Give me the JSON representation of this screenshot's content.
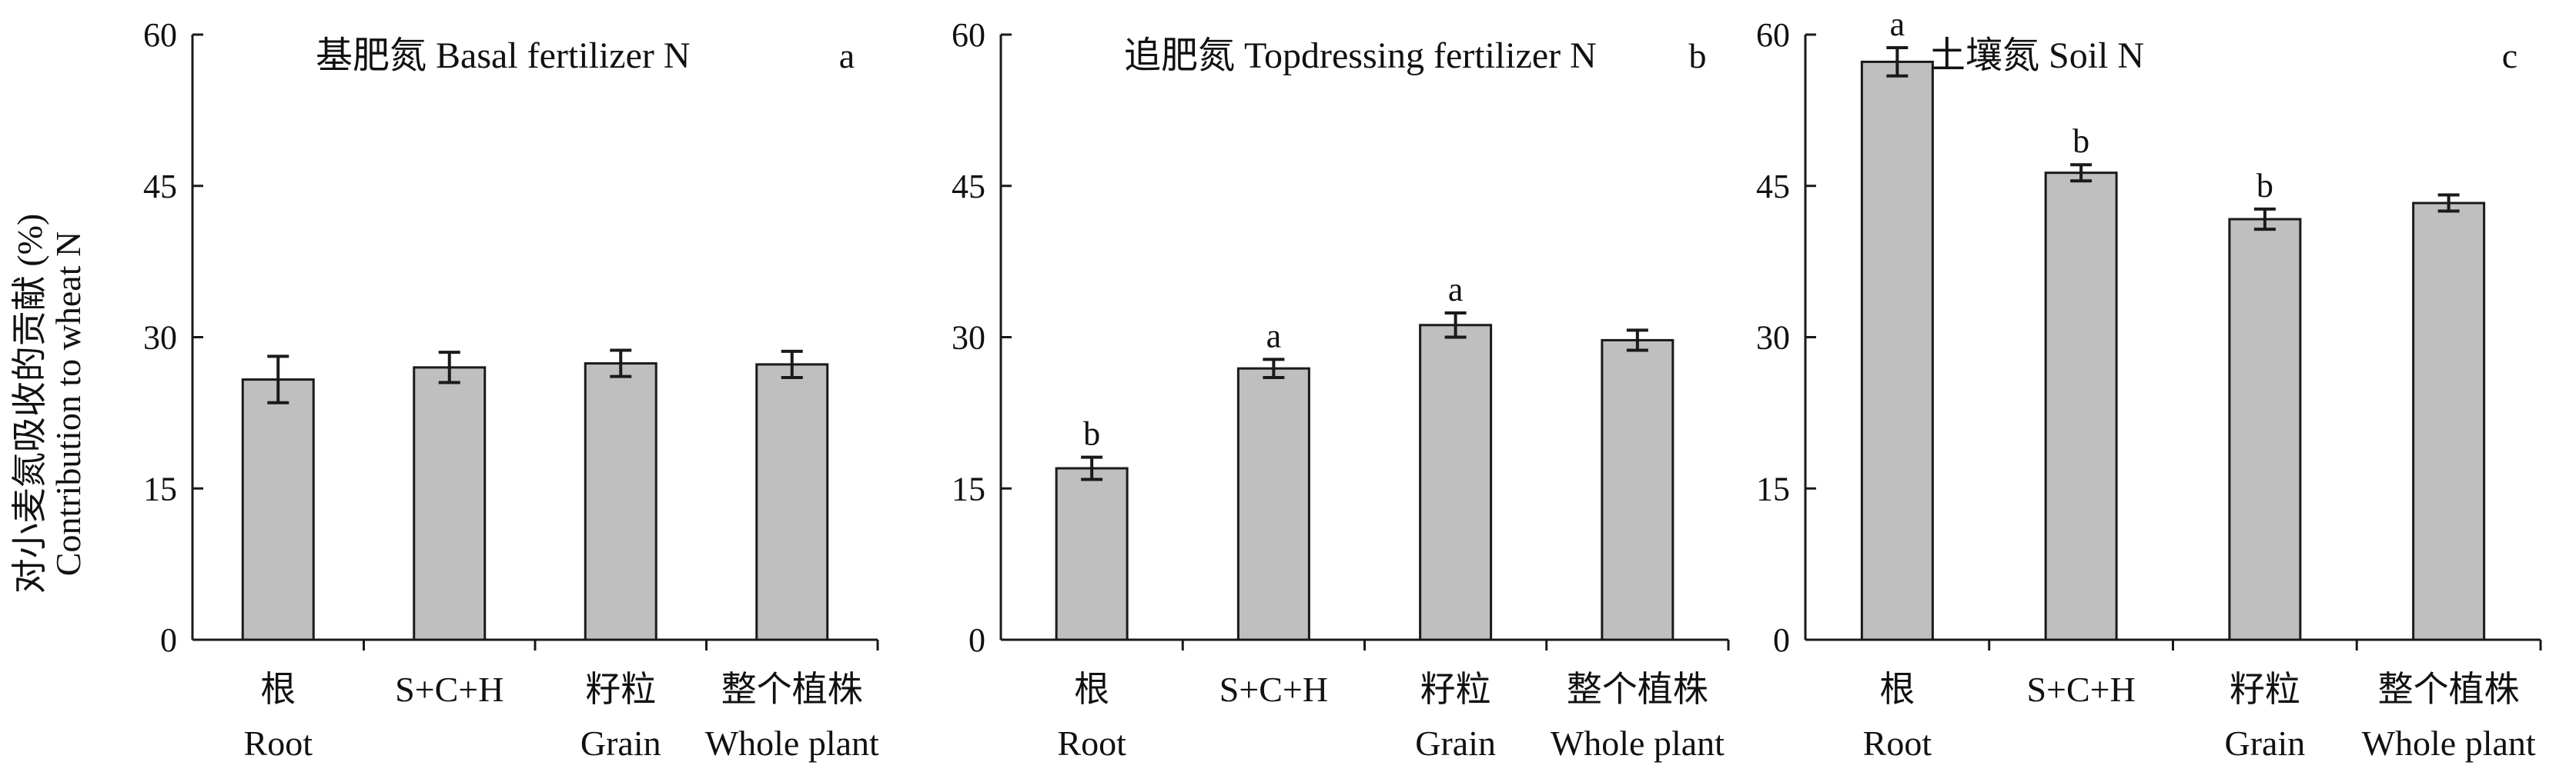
{
  "y_axis_label": {
    "zh": "对小麦氮吸收的贡献 (%)",
    "en": "Contribution to wheat N"
  },
  "chart_data": [
    {
      "type": "bar",
      "panel": "a",
      "title": "基肥氮 Basal fertilizer N",
      "categories": [
        {
          "zh": "根",
          "en": "Root"
        },
        {
          "zh": "S+C+H",
          "en": ""
        },
        {
          "zh": "籽粒",
          "en": "Grain"
        },
        {
          "zh": "整个植株",
          "en": "Whole plant"
        }
      ],
      "values": [
        25.8,
        27.0,
        27.4,
        27.3
      ],
      "errors": [
        2.3,
        1.5,
        1.3,
        1.3
      ],
      "significance": [
        "",
        "",
        "",
        ""
      ],
      "ylim": [
        0,
        60
      ],
      "yticks": [
        0,
        15,
        30,
        45,
        60
      ],
      "bar_color": "#bfbfbf",
      "grid": false
    },
    {
      "type": "bar",
      "panel": "b",
      "title": "追肥氮 Topdressing fertilizer N",
      "categories": [
        {
          "zh": "根",
          "en": "Root"
        },
        {
          "zh": "S+C+H",
          "en": ""
        },
        {
          "zh": "籽粒",
          "en": "Grain"
        },
        {
          "zh": "整个植株",
          "en": "Whole plant"
        }
      ],
      "values": [
        17.0,
        26.9,
        31.2,
        29.7
      ],
      "errors": [
        1.1,
        0.9,
        1.2,
        1.0
      ],
      "significance": [
        "b",
        "a",
        "a",
        ""
      ],
      "ylim": [
        0,
        60
      ],
      "yticks": [
        0,
        15,
        30,
        45,
        60
      ],
      "bar_color": "#bfbfbf",
      "grid": false
    },
    {
      "type": "bar",
      "panel": "c",
      "title": "土壤氮 Soil N",
      "categories": [
        {
          "zh": "根",
          "en": "Root"
        },
        {
          "zh": "S+C+H",
          "en": ""
        },
        {
          "zh": "籽粒",
          "en": "Grain"
        },
        {
          "zh": "整个植株",
          "en": "Whole plant"
        }
      ],
      "values": [
        57.3,
        46.3,
        41.7,
        43.3
      ],
      "errors": [
        1.4,
        0.8,
        1.0,
        0.8
      ],
      "significance": [
        "a",
        "b",
        "b",
        ""
      ],
      "ylim": [
        0,
        60
      ],
      "yticks": [
        0,
        15,
        30,
        45,
        60
      ],
      "bar_color": "#bfbfbf",
      "grid": false
    }
  ]
}
